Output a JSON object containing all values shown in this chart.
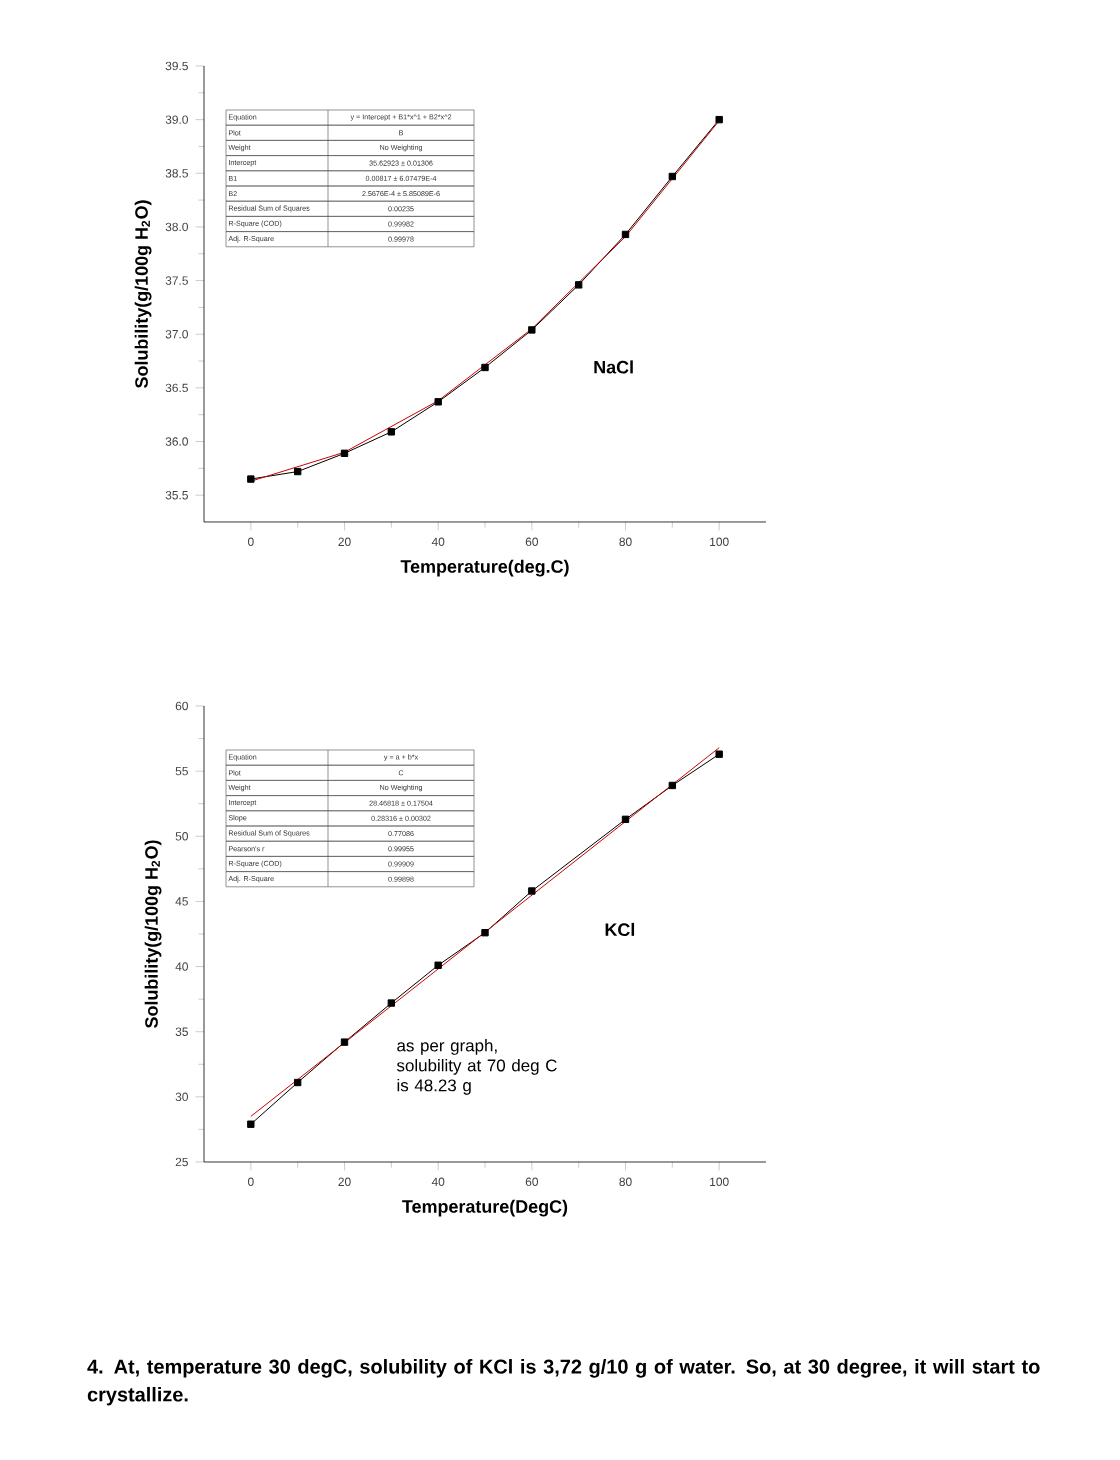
{
  "chart_data": [
    {
      "type": "line",
      "xlabel": "Temperature(deg.C)",
      "ylabel": "Solubility(g/100g H$_{2}$O)",
      "xlim": [
        -10,
        110
      ],
      "ylim": [
        35.25,
        39.5
      ],
      "xticks": [
        0,
        20,
        40,
        60,
        80,
        100
      ],
      "yticks": [
        {
          "value": 35.5,
          "label": "35.5"
        },
        {
          "value": 36,
          "label": "36.0"
        },
        {
          "value": 36.5,
          "label": "36.5"
        },
        {
          "value": 37,
          "label": "37.0"
        },
        {
          "value": 37.5,
          "label": "37.5"
        },
        {
          "value": 38,
          "label": "38.0"
        },
        {
          "value": 38.5,
          "label": "38.5"
        },
        {
          "value": 39,
          "label": "39.0"
        },
        {
          "value": 39.5,
          "label": "39.5"
        }
      ],
      "grid": false,
      "marker": "square",
      "line_style": "solid",
      "series": [
        {
          "color": "#000000",
          "x": [
            0,
            10,
            20,
            30,
            40,
            50,
            60,
            70,
            80,
            90,
            100
          ],
          "values": [
            35.65,
            35.72,
            35.89,
            36.09,
            36.37,
            36.69,
            37.04,
            37.46,
            37.93,
            38.47,
            39.0
          ]
        },
        {
          "color": "#cc0000",
          "marker": "none",
          "x": [
            0,
            20,
            40,
            60,
            80,
            100
          ],
          "values": [
            35.63,
            35.9,
            36.38,
            37.05,
            37.91,
            38.99
          ]
        }
      ],
      "annotations": [
        "Equation",
        "y = Intercept + B1*x^1 + B2*x^2",
        "Plot",
        "B",
        "Weight",
        "No Weighting",
        "Intercept",
        "35.62923 ± 0.01306",
        "B1",
        "0.00817 ± 6.07479E-4",
        "B2",
        "2.5676E-4 ± 5.85089E-6",
        "Residual Sum of Squares",
        "0.00235",
        "R-Square (COD)",
        "0.99982",
        "Adj. R-Square",
        "0.99978"
      ],
      "subtitle": "NaCl"
    },
    {
      "type": "line",
      "xlabel": "Temperature(DegC)",
      "ylabel": "Solubility(g/100g H$_{2}$O)",
      "xlim": [
        -10,
        110
      ],
      "ylim": [
        25,
        60
      ],
      "xticks": [
        0,
        20,
        40,
        60,
        80,
        100
      ],
      "yticks": [
        25,
        30,
        35,
        40,
        45,
        50,
        55,
        60
      ],
      "grid": false,
      "marker": "square",
      "line_style": "solid",
      "series": [
        {
          "color": "#000000",
          "x": [
            0,
            10,
            20,
            30,
            40,
            50,
            60,
            80,
            90,
            100
          ],
          "values": [
            27.9,
            31.1,
            34.2,
            37.2,
            40.1,
            42.6,
            45.8,
            51.3,
            53.9,
            56.3
          ]
        },
        {
          "color": "#cc0000",
          "marker": "none",
          "x": [
            0,
            100
          ],
          "values": [
            28.5,
            56.8
          ]
        }
      ],
      "annotations": [
        "Equation",
        "y = a + b*x",
        "Plot",
        "C",
        "Weight",
        "No Weighting",
        "Intercept",
        "28.46818 ± 0.17504",
        "Slope",
        "0.28316 ± 0.00302",
        "Residual Sum of Squares",
        "0.77086",
        "Pearson's r",
        "0.99955",
        "R-Square (COD)",
        "0.99909",
        "Adj. R-Square",
        "0.99898",
        "as per graph,\nsolubility at 70 deg C\n is 48.23 g"
      ],
      "subtitle": "KCl"
    },
    {
      "type": "other",
      "title": "4. At, temperature 30 degC, solubility of KCl is 3,72 g/10 g of water. So, at 30 degree, it will start to crystallize."
    }
  ]
}
